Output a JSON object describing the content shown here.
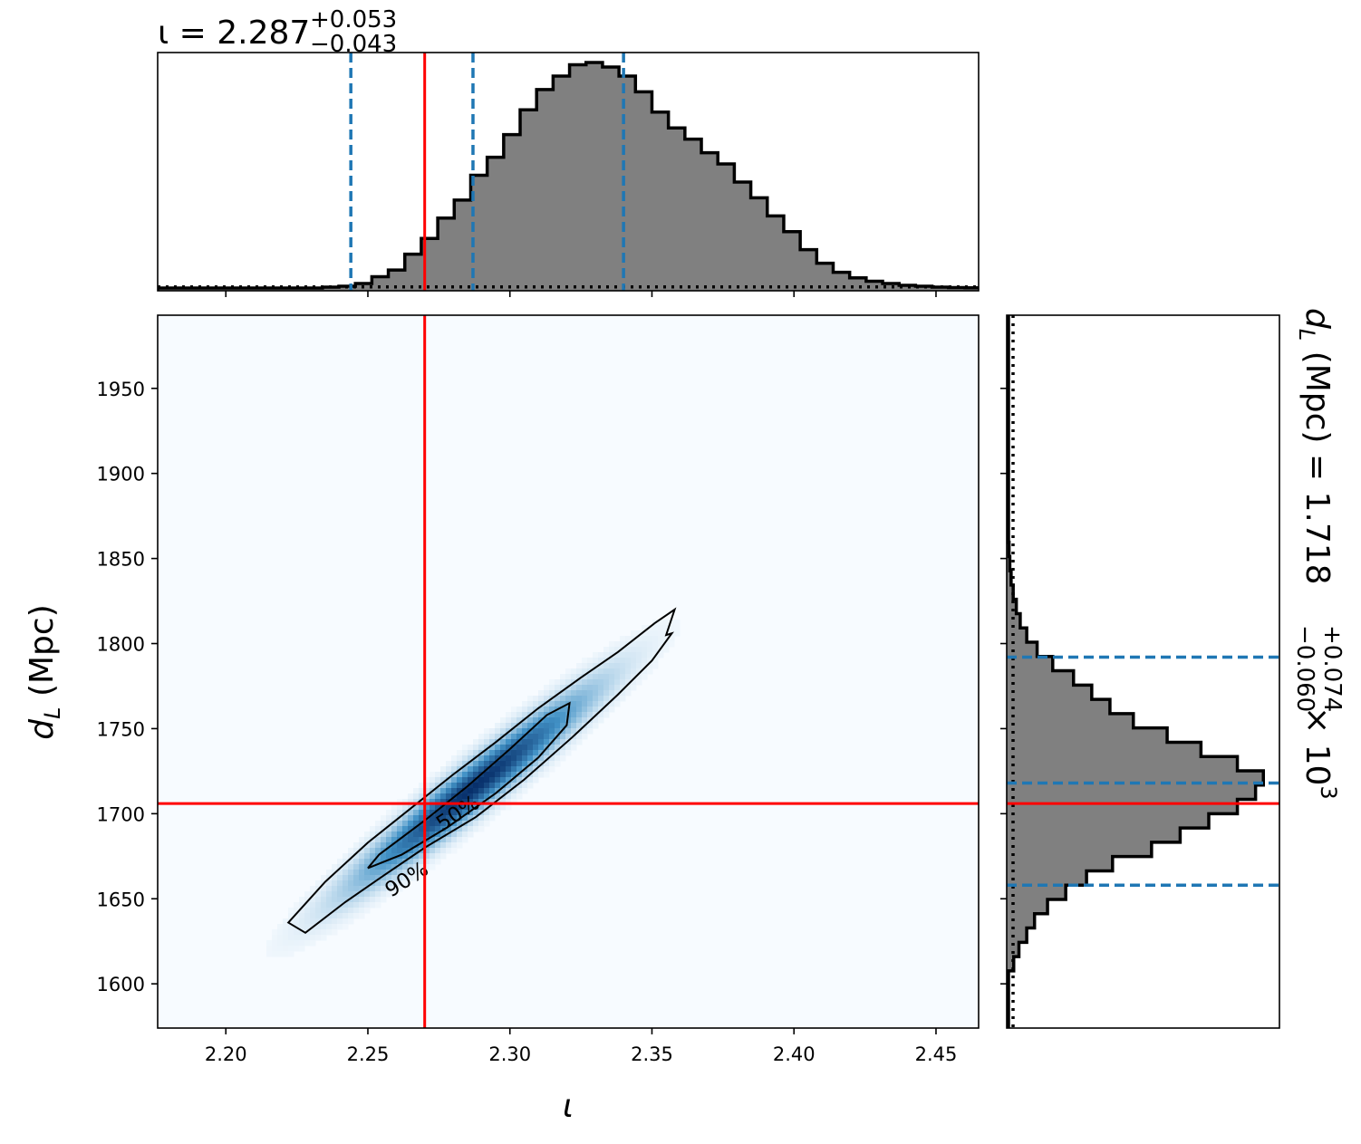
{
  "chart_data": {
    "type": "corner-plot",
    "parameters": [
      {
        "name": "iota",
        "symbol": "ι",
        "label": "ι",
        "truth": 2.27,
        "median": 2.287,
        "plus": 0.053,
        "minus": 0.043,
        "quantiles": [
          2.244,
          2.287,
          2.34
        ]
      },
      {
        "name": "distance",
        "symbol": "d_L",
        "label_sub": "L",
        "label_main": "d",
        "label_unit": " (Mpc)",
        "truth": 1706,
        "median": 1718,
        "plus": 74,
        "minus": 60,
        "quantiles": [
          1658,
          1718,
          1792
        ]
      }
    ],
    "top_title": {
      "prefix": "ι = 2.287",
      "sup": "+0.053",
      "sub": "−0.043"
    },
    "right_title": {
      "prefix_main": "d",
      "prefix_sub": "L",
      "middle": " (Mpc) = 1.718",
      "sup": "+0.074",
      "sub": "−0.060",
      "suffix": " × 10",
      "exp": "3"
    },
    "joint": {
      "type": "heatmap",
      "x_axis": {
        "label": "ι",
        "xlim": [
          2.176,
          2.465
        ],
        "ticks": [
          2.2,
          2.25,
          2.3,
          2.35,
          2.4,
          2.45
        ],
        "tick_labels": [
          "2.20",
          "2.25",
          "2.30",
          "2.35",
          "2.40",
          "2.45"
        ]
      },
      "y_axis": {
        "label": "d_L (Mpc)",
        "ylim": [
          1574,
          1993
        ],
        "ticks": [
          1600,
          1650,
          1700,
          1750,
          1800,
          1850,
          1900,
          1950
        ],
        "tick_labels": [
          "1600",
          "1650",
          "1700",
          "1750",
          "1800",
          "1850",
          "1900",
          "1950"
        ]
      },
      "density": {
        "center": [
          2.287,
          1715
        ],
        "sd_x": 0.024,
        "sd_y": 33,
        "rho": 0.96
      },
      "contours": [
        {
          "label": "50%",
          "label_at": [
            2.283,
            1697
          ],
          "points": [
            [
              2.25,
              1668
            ],
            [
              2.254,
              1676
            ],
            [
              2.27,
              1696
            ],
            [
              2.285,
              1716
            ],
            [
              2.3,
              1738
            ],
            [
              2.313,
              1758
            ],
            [
              2.321,
              1765
            ],
            [
              2.32,
              1752
            ],
            [
              2.31,
              1733
            ],
            [
              2.295,
              1712
            ],
            [
              2.278,
              1692
            ],
            [
              2.262,
              1676
            ]
          ]
        },
        {
          "label": "90%",
          "label_at": [
            2.265,
            1658
          ],
          "points": [
            [
              2.222,
              1636
            ],
            [
              2.235,
              1660
            ],
            [
              2.25,
              1683
            ],
            [
              2.265,
              1703
            ],
            [
              2.28,
              1723
            ],
            [
              2.295,
              1742
            ],
            [
              2.31,
              1762
            ],
            [
              2.325,
              1780
            ],
            [
              2.338,
              1795
            ],
            [
              2.351,
              1812
            ],
            [
              2.358,
              1820
            ],
            [
              2.355,
              1805
            ],
            [
              2.357,
              1806
            ],
            [
              2.35,
              1790
            ],
            [
              2.338,
              1770
            ],
            [
              2.322,
              1745
            ],
            [
              2.305,
              1720
            ],
            [
              2.288,
              1698
            ],
            [
              2.27,
              1680
            ],
            [
              2.255,
              1663
            ],
            [
              2.242,
              1648
            ],
            [
              2.228,
              1630
            ]
          ]
        }
      ]
    },
    "marginal_x": {
      "type": "step-histogram",
      "bin_edges_start": 2.176,
      "bin_width": 0.0058,
      "counts": [
        0,
        0,
        0,
        0,
        0,
        0,
        0,
        0,
        0,
        0,
        0.004,
        0.008,
        0.02,
        0.05,
        0.08,
        0.15,
        0.22,
        0.31,
        0.39,
        0.5,
        0.58,
        0.68,
        0.79,
        0.88,
        0.94,
        0.99,
        1.0,
        0.98,
        0.94,
        0.87,
        0.78,
        0.71,
        0.66,
        0.6,
        0.55,
        0.47,
        0.4,
        0.32,
        0.25,
        0.17,
        0.11,
        0.07,
        0.045,
        0.03,
        0.02,
        0.012,
        0.008,
        0.004,
        0.002,
        0.001,
        0
      ],
      "prior_level": 0.025
    },
    "marginal_y": {
      "type": "step-histogram",
      "bin_edges_start": 1574,
      "bin_width": 8.4,
      "counts": [
        0,
        0,
        0,
        0,
        0.02,
        0.04,
        0.07,
        0.1,
        0.15,
        0.22,
        0.3,
        0.4,
        0.55,
        0.66,
        0.77,
        0.88,
        0.95,
        0.98,
        0.88,
        0.74,
        0.61,
        0.48,
        0.39,
        0.32,
        0.25,
        0.17,
        0.11,
        0.07,
        0.045,
        0.03,
        0.018,
        0.01,
        0.005,
        0.002,
        0,
        0,
        0,
        0,
        0,
        0,
        0,
        0,
        0,
        0,
        0,
        0,
        0,
        0,
        0,
        0
      ],
      "prior_level": 0.03
    },
    "colors": {
      "hist_fill": "#808080",
      "hist_edge": "#000000",
      "truth": "#ff0000",
      "quantile": "#1f77b4",
      "cmap_low": "#f7fbff",
      "cmap_high": "#08306b"
    },
    "grid": false
  }
}
